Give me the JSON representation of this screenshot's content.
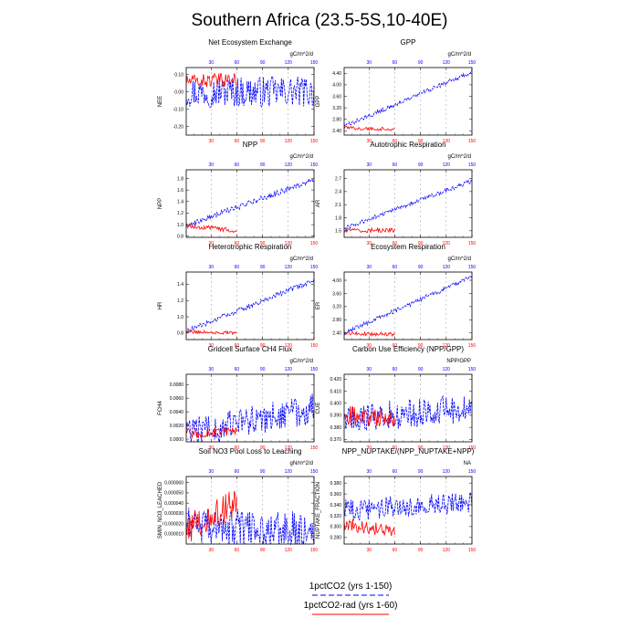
{
  "title": "Southern Africa (23.5-5S,10-40E)",
  "legend": {
    "items": [
      {
        "label": "1pctCO2 (yrs 1-150)",
        "color": "#0000ff",
        "dash": true
      },
      {
        "label": "1pctCO2-rad (yrs 1-60)",
        "color": "#ff0000",
        "dash": false
      }
    ]
  },
  "colors": {
    "series1": "#0000ff",
    "series2": "#ff0000",
    "grid": "#999999"
  },
  "chart_data": [
    {
      "type": "line",
      "title": "Net Ecosystem Exchange",
      "units": "gC/m^2/d",
      "ylabel": "NEE",
      "yticks": [
        "0.10",
        "0.00",
        "-0.10",
        "-0.20"
      ],
      "ytick_vals": [
        0.1,
        0.0,
        -0.1,
        -0.2
      ],
      "ylim": [
        -0.25,
        0.14
      ],
      "xlim": [
        1,
        150
      ],
      "xticks": [
        30,
        60,
        90,
        120,
        150
      ],
      "series": [
        {
          "name": "1pctCO2 (yrs 1-150)",
          "years": [
            1,
            150
          ],
          "mean_start": 0.0,
          "mean_end": 0.0,
          "noise": 0.09
        },
        {
          "name": "1pctCO2-rad (yrs 1-60)",
          "years": [
            1,
            60
          ],
          "mean_start": 0.06,
          "mean_end": 0.07,
          "noise": 0.04
        }
      ]
    },
    {
      "type": "line",
      "title": "GPP",
      "units": "gC/m^2/d",
      "ylabel": "GPP",
      "yticks": [
        "4.40",
        "4.00",
        "3.60",
        "3.20",
        "2.80",
        "2.40"
      ],
      "ytick_vals": [
        4.4,
        4.0,
        3.6,
        3.2,
        2.8,
        2.4
      ],
      "ylim": [
        2.25,
        4.6
      ],
      "xlim": [
        1,
        150
      ],
      "xticks": [
        30,
        60,
        90,
        120,
        150
      ],
      "series": [
        {
          "name": "1pctCO2 (yrs 1-150)",
          "years": [
            1,
            150
          ],
          "mean_start": 2.55,
          "mean_end": 4.45,
          "noise": 0.08
        },
        {
          "name": "1pctCO2-rad (yrs 1-60)",
          "years": [
            1,
            60
          ],
          "mean_start": 2.5,
          "mean_end": 2.45,
          "noise": 0.06
        }
      ]
    },
    {
      "type": "line",
      "title": "NPP",
      "units": "gC/m^2/d",
      "ylabel": "NPP",
      "yticks": [
        "1.8",
        "1.6",
        "1.4",
        "1.2",
        "1.0",
        "0.8"
      ],
      "ytick_vals": [
        1.8,
        1.6,
        1.4,
        1.2,
        1.0,
        0.8
      ],
      "ylim": [
        0.78,
        1.95
      ],
      "xlim": [
        1,
        150
      ],
      "xticks": [
        30,
        60,
        90,
        120,
        150
      ],
      "series": [
        {
          "name": "1pctCO2 (yrs 1-150)",
          "years": [
            1,
            150
          ],
          "mean_start": 0.98,
          "mean_end": 1.78,
          "noise": 0.05
        },
        {
          "name": "1pctCO2-rad (yrs 1-60)",
          "years": [
            1,
            60
          ],
          "mean_start": 0.98,
          "mean_end": 0.9,
          "noise": 0.04
        }
      ]
    },
    {
      "type": "line",
      "title": "Autotrophic Respiration",
      "units": "gC/m^2/d",
      "ylabel": "AR",
      "yticks": [
        "2.7",
        "2.4",
        "2.1",
        "1.8",
        "1.5"
      ],
      "ytick_vals": [
        2.7,
        2.4,
        2.1,
        1.8,
        1.5
      ],
      "ylim": [
        1.35,
        2.9
      ],
      "xlim": [
        1,
        150
      ],
      "xticks": [
        30,
        60,
        90,
        120,
        150
      ],
      "series": [
        {
          "name": "1pctCO2 (yrs 1-150)",
          "years": [
            1,
            150
          ],
          "mean_start": 1.55,
          "mean_end": 2.65,
          "noise": 0.05
        },
        {
          "name": "1pctCO2-rad (yrs 1-60)",
          "years": [
            1,
            60
          ],
          "mean_start": 1.5,
          "mean_end": 1.52,
          "noise": 0.05
        }
      ]
    },
    {
      "type": "line",
      "title": "Heterotrophic Respiration",
      "units": "gC/m^2/d",
      "ylabel": "HR",
      "yticks": [
        "1.4",
        "1.2",
        "1.0",
        "0.8"
      ],
      "ytick_vals": [
        1.4,
        1.2,
        1.0,
        0.8
      ],
      "ylim": [
        0.72,
        1.55
      ],
      "xlim": [
        1,
        150
      ],
      "xticks": [
        30,
        60,
        90,
        120,
        150
      ],
      "series": [
        {
          "name": "1pctCO2 (yrs 1-150)",
          "years": [
            1,
            150
          ],
          "mean_start": 0.82,
          "mean_end": 1.45,
          "noise": 0.03
        },
        {
          "name": "1pctCO2-rad (yrs 1-60)",
          "years": [
            1,
            60
          ],
          "mean_start": 0.82,
          "mean_end": 0.8,
          "noise": 0.02
        }
      ]
    },
    {
      "type": "line",
      "title": "Ecosystem Respiration",
      "units": "gC/m^2/d",
      "ylabel": "ER",
      "yticks": [
        "4.00",
        "3.60",
        "3.20",
        "2.80",
        "2.40"
      ],
      "ytick_vals": [
        4.0,
        3.6,
        3.2,
        2.8,
        2.4
      ],
      "ylim": [
        2.2,
        4.25
      ],
      "xlim": [
        1,
        150
      ],
      "xticks": [
        30,
        60,
        90,
        120,
        150
      ],
      "series": [
        {
          "name": "1pctCO2 (yrs 1-150)",
          "years": [
            1,
            150
          ],
          "mean_start": 2.4,
          "mean_end": 4.1,
          "noise": 0.07
        },
        {
          "name": "1pctCO2-rad (yrs 1-60)",
          "years": [
            1,
            60
          ],
          "mean_start": 2.38,
          "mean_end": 2.36,
          "noise": 0.06
        }
      ]
    },
    {
      "type": "line",
      "title": "Gridcell Surface CH4 Flux",
      "units": "gC/m^2/d",
      "ylabel": "FCH4",
      "yticks": [
        "0.0080",
        "0.0060",
        "0.0040",
        "0.0020",
        "0.0000"
      ],
      "ytick_vals": [
        0.008,
        0.006,
        0.004,
        0.002,
        0.0
      ],
      "ylim": [
        -0.0004,
        0.0095
      ],
      "xlim": [
        1,
        150
      ],
      "xticks": [
        30,
        60,
        90,
        120,
        150
      ],
      "series": [
        {
          "name": "1pctCO2 (yrs 1-150)",
          "years": [
            1,
            150
          ],
          "mean_start": 0.0008,
          "mean_end": 0.0045,
          "noise": 0.0022
        },
        {
          "name": "1pctCO2-rad (yrs 1-60)",
          "years": [
            1,
            60
          ],
          "mean_start": 0.0008,
          "mean_end": 0.001,
          "noise": 0.0008
        }
      ]
    },
    {
      "type": "line",
      "title": "Carbon Use Efficiency (NPP/GPP)",
      "units": "NPP/GPP",
      "ylabel": "CUE",
      "yticks": [
        "0.420",
        "0.410",
        "0.400",
        "0.390",
        "0.380",
        "0.370"
      ],
      "ytick_vals": [
        0.42,
        0.41,
        0.4,
        0.39,
        0.38,
        0.37
      ],
      "ylim": [
        0.368,
        0.424
      ],
      "xlim": [
        1,
        150
      ],
      "xticks": [
        30,
        60,
        90,
        120,
        150
      ],
      "series": [
        {
          "name": "1pctCO2 (yrs 1-150)",
          "years": [
            1,
            150
          ],
          "mean_start": 0.387,
          "mean_end": 0.396,
          "noise": 0.012
        },
        {
          "name": "1pctCO2-rad (yrs 1-60)",
          "years": [
            1,
            60
          ],
          "mean_start": 0.39,
          "mean_end": 0.388,
          "noise": 0.008
        }
      ]
    },
    {
      "type": "line",
      "title": "Soil NO3 Pool Loss to Leaching",
      "units": "gN/m^2/d",
      "ylabel": "SMIN_NO3_LEACHED",
      "yticks": [
        "0.000060",
        "0.000050",
        "0.000040",
        "0.000030",
        "0.000020",
        "0.000010"
      ],
      "ytick_vals": [
        6e-05,
        5e-05,
        4e-05,
        3e-05,
        2e-05,
        1e-05
      ],
      "ylim": [
        0.0,
        6.6e-05
      ],
      "xlim": [
        1,
        150
      ],
      "xticks": [
        30,
        60,
        90,
        120,
        150
      ],
      "series": [
        {
          "name": "1pctCO2 (yrs 1-150)",
          "years": [
            1,
            150
          ],
          "mean_start": 1.8e-05,
          "mean_end": 1.4e-05,
          "noise": 1.8e-05
        },
        {
          "name": "1pctCO2-rad (yrs 1-60)",
          "years": [
            1,
            60
          ],
          "mean_start": 1.5e-05,
          "mean_end": 4e-05,
          "noise": 1.5e-05
        }
      ]
    },
    {
      "type": "line",
      "title": "NPP_NUPTAKE/(NPP_NUPTAKE+NPP)",
      "units": "NA",
      "ylabel": "NUPTAKE_FRACTION",
      "yticks": [
        "0.380",
        "0.360",
        "0.340",
        "0.320",
        "0.300",
        "0.280"
      ],
      "ytick_vals": [
        0.38,
        0.36,
        0.34,
        0.32,
        0.3,
        0.28
      ],
      "ylim": [
        0.268,
        0.392
      ],
      "xlim": [
        1,
        150
      ],
      "xticks": [
        30,
        60,
        90,
        120,
        150
      ],
      "series": [
        {
          "name": "1pctCO2 (yrs 1-150)",
          "years": [
            1,
            150
          ],
          "mean_start": 0.33,
          "mean_end": 0.345,
          "noise": 0.02
        },
        {
          "name": "1pctCO2-rad (yrs 1-60)",
          "years": [
            1,
            60
          ],
          "mean_start": 0.305,
          "mean_end": 0.29,
          "noise": 0.012
        }
      ]
    }
  ]
}
